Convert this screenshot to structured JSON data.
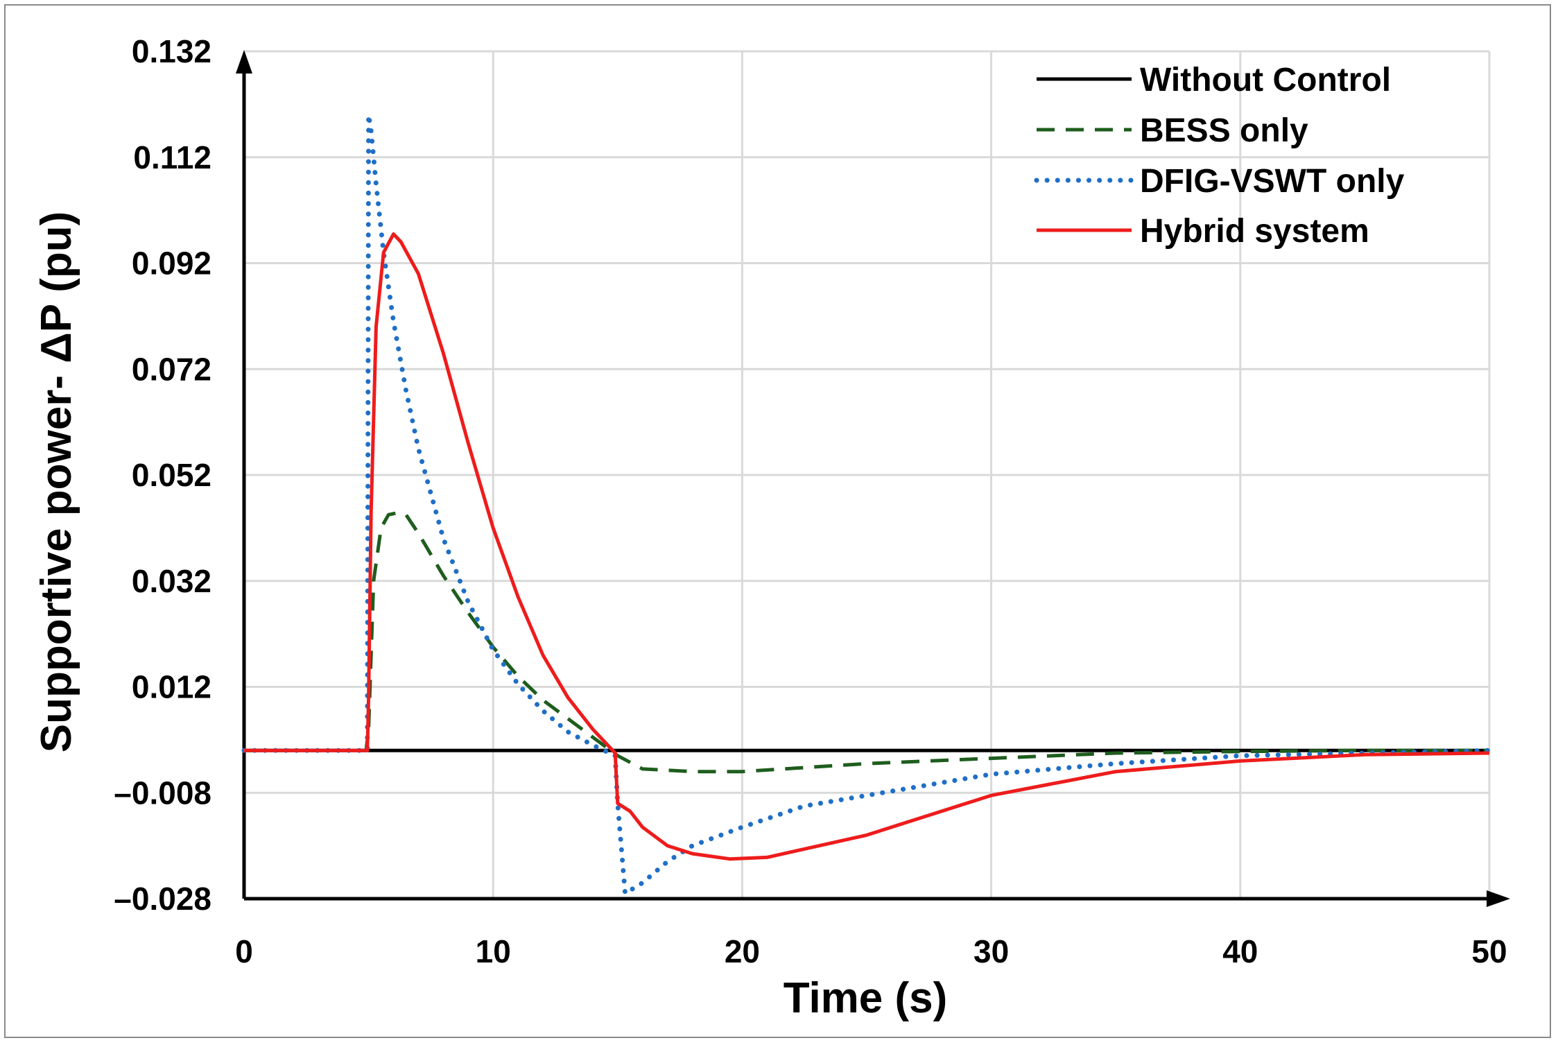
{
  "chart_data": {
    "type": "line",
    "title": "",
    "xlabel": "Time (s)",
    "ylabel": "Supportive power- ΔP (pu)",
    "xlim": [
      0,
      50
    ],
    "ylim": [
      -0.028,
      0.132
    ],
    "x_ticks": [
      0,
      10,
      20,
      30,
      40,
      50
    ],
    "x_tick_labels": [
      "0",
      "10",
      "20",
      "30",
      "40",
      "50"
    ],
    "y_ticks": [
      0.132,
      0.112,
      0.092,
      0.072,
      0.052,
      0.032,
      0.012,
      -0.008,
      -0.028
    ],
    "y_tick_labels": [
      "0.132",
      "0.112",
      "0.092",
      "0.072",
      "0.052",
      "0.032",
      "0.012",
      "–0.008",
      "–0.028"
    ],
    "grid": true,
    "legend_position": "top-right",
    "series": [
      {
        "name": "Without Control",
        "color": "#000000",
        "style": "solid",
        "x": [
          0,
          50
        ],
        "y": [
          0,
          0
        ]
      },
      {
        "name": "BESS only",
        "color": "#1e5d1e",
        "style": "dashed",
        "x": [
          0,
          4.9,
          5.0,
          5.2,
          5.5,
          5.8,
          6.1,
          6.5,
          7,
          8,
          9,
          10,
          11,
          12,
          13,
          14,
          15,
          16,
          18,
          20,
          25,
          30,
          35,
          40,
          45,
          50
        ],
        "y": [
          0,
          0,
          0.004,
          0.032,
          0.042,
          0.0445,
          0.0448,
          0.0445,
          0.041,
          0.033,
          0.026,
          0.0195,
          0.014,
          0.0095,
          0.006,
          0.0025,
          -0.001,
          -0.0035,
          -0.004,
          -0.004,
          -0.0025,
          -0.0015,
          -0.0005,
          -0.0002,
          0,
          0
        ]
      },
      {
        "name": "DFIG-VSWT only",
        "color": "#1f6fc6",
        "style": "dotted",
        "x": [
          0,
          4.95,
          5.0,
          5.1,
          5.3,
          5.6,
          6.0,
          6.5,
          7,
          8,
          9,
          10,
          11,
          12,
          13,
          14,
          14.9,
          15.0,
          15.3,
          16,
          17,
          18,
          20,
          22.5,
          25,
          30,
          35,
          40,
          45,
          50
        ],
        "y": [
          0,
          0,
          0.12,
          0.117,
          0.107,
          0.094,
          0.081,
          0.068,
          0.057,
          0.04,
          0.028,
          0.019,
          0.0125,
          0.0075,
          0.0035,
          0.001,
          -0.001,
          -0.01,
          -0.027,
          -0.025,
          -0.021,
          -0.018,
          -0.0145,
          -0.0105,
          -0.0085,
          -0.0045,
          -0.0025,
          -0.001,
          -0.0005,
          0
        ]
      },
      {
        "name": "Hybrid system",
        "color": "#ee1c1c",
        "style": "solid",
        "x": [
          0,
          4.95,
          5.0,
          5.1,
          5.3,
          5.6,
          6.0,
          6.3,
          7,
          8,
          9,
          10,
          11,
          12,
          13,
          14,
          14.9,
          15.0,
          15.5,
          16,
          17,
          18,
          19.5,
          21,
          25,
          30,
          35,
          40,
          45,
          50
        ],
        "y": [
          0,
          0,
          0.01,
          0.045,
          0.08,
          0.094,
          0.0975,
          0.096,
          0.09,
          0.075,
          0.058,
          0.042,
          0.029,
          0.018,
          0.01,
          0.004,
          -0.0005,
          -0.01,
          -0.0115,
          -0.0145,
          -0.018,
          -0.0195,
          -0.0205,
          -0.0202,
          -0.016,
          -0.0085,
          -0.004,
          -0.002,
          -0.0008,
          -0.0005
        ]
      }
    ]
  }
}
